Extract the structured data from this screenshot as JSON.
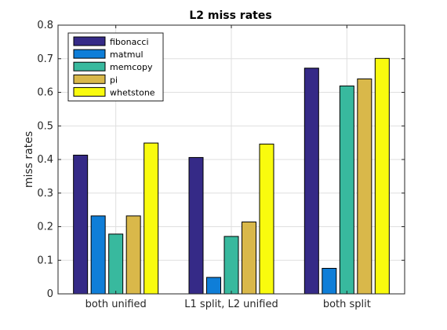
{
  "chart_data": {
    "type": "bar",
    "title": "L2 miss rates",
    "xlabel": "",
    "ylabel": "miss rates",
    "ylim": [
      0,
      0.8
    ],
    "yticks": [
      0,
      0.1,
      0.2,
      0.3,
      0.4,
      0.5,
      0.6,
      0.7,
      0.8
    ],
    "ytick_labels": [
      "0",
      "0.1",
      "0.2",
      "0.3",
      "0.4",
      "0.5",
      "0.6",
      "0.7",
      "0.8"
    ],
    "grid": true,
    "legend_position": "top-left",
    "categories": [
      "both unified",
      "L1 split, L2 unified",
      "both split"
    ],
    "series": [
      {
        "name": "fibonacci",
        "color": "#352a87",
        "values": [
          0.413,
          0.406,
          0.672
        ]
      },
      {
        "name": "matmul",
        "color": "#0f7ed8",
        "values": [
          0.232,
          0.049,
          0.076
        ]
      },
      {
        "name": "memcopy",
        "color": "#38b99e",
        "values": [
          0.178,
          0.171,
          0.619
        ]
      },
      {
        "name": "pi",
        "color": "#d9b84a",
        "values": [
          0.232,
          0.214,
          0.64
        ]
      },
      {
        "name": "whetstone",
        "color": "#f9fb0e",
        "values": [
          0.449,
          0.446,
          0.701
        ]
      }
    ]
  }
}
